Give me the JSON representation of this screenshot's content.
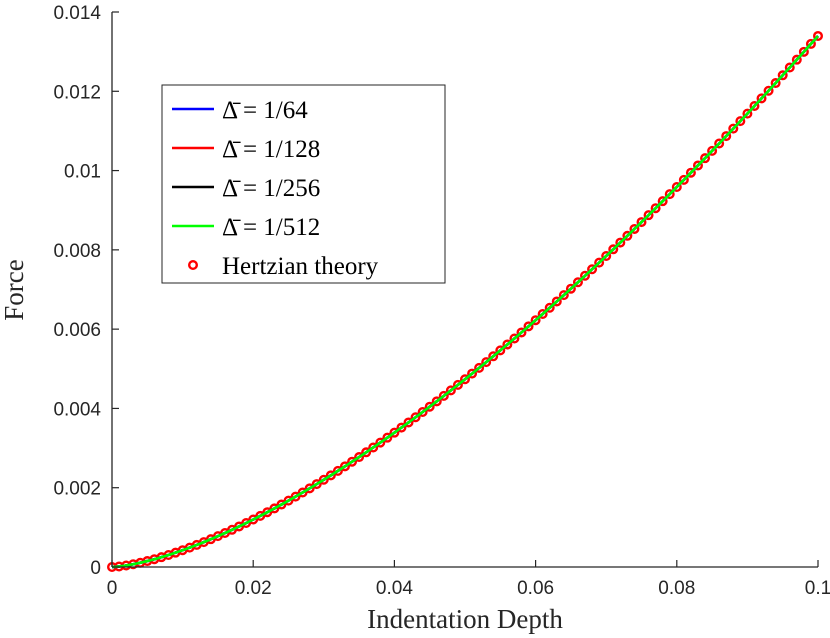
{
  "chart_data": {
    "type": "line",
    "xlabel": "Indentation Depth",
    "ylabel": "Force",
    "xlim": [
      0,
      0.1
    ],
    "ylim": [
      0,
      0.014
    ],
    "x_ticks": [
      "0",
      "0.02",
      "0.04",
      "0.06",
      "0.08",
      "0.1"
    ],
    "y_ticks": [
      "0",
      "0.002",
      "0.004",
      "0.006",
      "0.008",
      "0.01",
      "0.012",
      "0.014"
    ],
    "grid": false,
    "legend_position": "top-left",
    "hertz_coefficient": 0.4236,
    "hertz_exponent": 1.5,
    "series": [
      {
        "name": "Δ̄ = 1/64",
        "style": "line",
        "color": "#0000ff",
        "draw_order": 3
      },
      {
        "name": "Δ̄ = 1/128",
        "style": "line",
        "color": "#ff0000",
        "draw_order": 0
      },
      {
        "name": "Δ̄ = 1/256",
        "style": "line",
        "color": "#000000",
        "draw_order": 2
      },
      {
        "name": "Δ̄ = 1/512",
        "style": "line",
        "color": "#00ff00",
        "draw_order": 4
      },
      {
        "name": "Hertzian theory",
        "style": "marker",
        "marker": "circle",
        "color": "#ff0000",
        "draw_order": 1
      }
    ],
    "marker_x": {
      "start": 0,
      "end": 0.1,
      "step": 0.001
    }
  }
}
